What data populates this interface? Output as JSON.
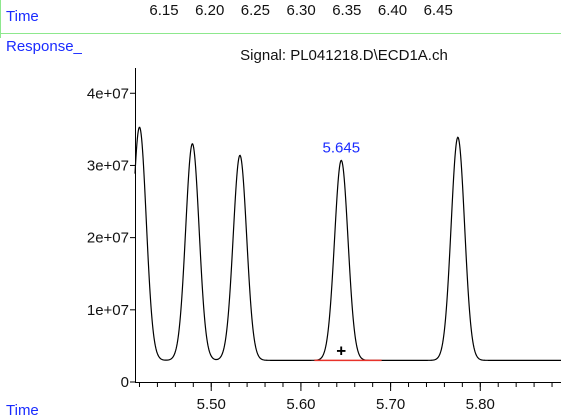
{
  "header": {
    "time_label": "Time",
    "time_ticks": [
      "6.15",
      "6.20",
      "6.25",
      "6.30",
      "6.35",
      "6.40",
      "6.45"
    ]
  },
  "chart_data": {
    "type": "line",
    "title": "Signal: PL041218.D\\ECD1A.ch",
    "ylabel": "Response_",
    "xlabel": "Time",
    "xlim": [
      5.415,
      5.89
    ],
    "ylim": [
      0,
      43500000
    ],
    "yticks": [
      {
        "value": 0,
        "label": "0"
      },
      {
        "value": 10000000,
        "label": "1e+07"
      },
      {
        "value": 20000000,
        "label": "2e+07"
      },
      {
        "value": 30000000,
        "label": "3e+07"
      },
      {
        "value": 40000000,
        "label": "4e+07"
      }
    ],
    "xticks": [
      {
        "value": 5.5,
        "label": "5.50"
      },
      {
        "value": 5.6,
        "label": "5.60"
      },
      {
        "value": 5.7,
        "label": "5.70"
      },
      {
        "value": 5.8,
        "label": "5.80"
      }
    ],
    "x_minor_step": 0.02,
    "colors": {
      "trace": "#000000",
      "baseline": "#e8322a",
      "annotation": "#1a2bff",
      "border": "#8de88d"
    },
    "series": [
      {
        "baseline": 3000000,
        "peaks": [
          {
            "rt": 5.42,
            "height": 35300000,
            "width": 0.0075
          },
          {
            "rt": 5.479,
            "height": 33000000,
            "width": 0.0075
          },
          {
            "rt": 5.532,
            "height": 31400000,
            "width": 0.0075
          },
          {
            "rt": 5.645,
            "height": 30700000,
            "width": 0.0075
          },
          {
            "rt": 5.775,
            "height": 33900000,
            "width": 0.0075
          }
        ]
      }
    ],
    "annotations": [
      {
        "label": "5.645",
        "x": 5.645,
        "y": 30700000
      }
    ],
    "integration_baseline": {
      "x_start": 5.615,
      "x_end": 5.69,
      "y": 3000000
    },
    "marker": {
      "x": 5.645,
      "y": 3000000,
      "symbol": "+"
    }
  }
}
